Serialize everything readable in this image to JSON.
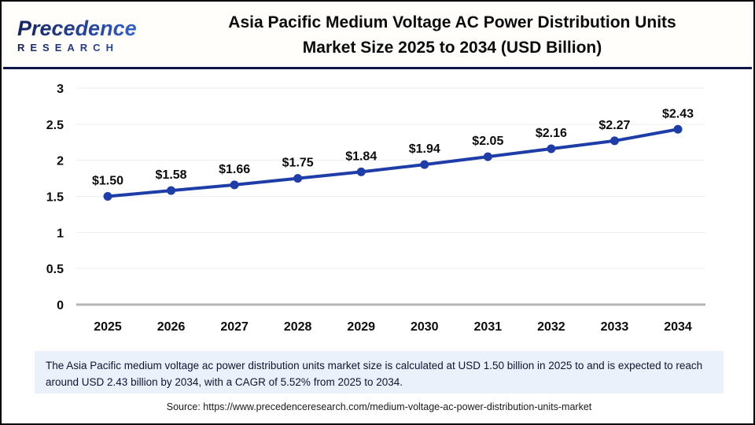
{
  "header": {
    "logo": {
      "brand": "Precedence",
      "sub": "RESEARCH"
    },
    "title_line1": "Asia Pacific Medium Voltage AC Power Distribution Units",
    "title_line2": "Market Size 2025 to 2034 (USD Billion)"
  },
  "chart_data": {
    "type": "line",
    "title": "Asia Pacific Medium Voltage AC Power Distribution Units Market Size 2025 to 2034 (USD Billion)",
    "categories": [
      "2025",
      "2026",
      "2027",
      "2028",
      "2029",
      "2030",
      "2031",
      "2032",
      "2033",
      "2034"
    ],
    "values": [
      1.5,
      1.58,
      1.66,
      1.75,
      1.84,
      1.94,
      2.05,
      2.16,
      2.27,
      2.43
    ],
    "point_labels": [
      "$1.50",
      "$1.58",
      "$1.66",
      "$1.75",
      "$1.84",
      "$1.94",
      "$2.05",
      "$2.16",
      "$2.27",
      "$2.43"
    ],
    "xlabel": "",
    "ylabel": "",
    "ylim": [
      0,
      3
    ],
    "yticks": [
      0,
      0.5,
      1,
      1.5,
      2,
      2.5,
      3
    ],
    "grid": true,
    "legend": "none",
    "line_color": "#1e3da8",
    "marker": "circle"
  },
  "summary": {
    "text": "The Asia Pacific medium voltage ac power distribution units market size is calculated at USD 1.50 billion in 2025 to and is expected to reach around USD 2.43 billion by 2034, with a CAGR of 5.52% from 2025 to 2034."
  },
  "source": {
    "text": "Source: https://www.precedenceresearch.com/medium-voltage-ac-power-distribution-units-market"
  },
  "colors": {
    "line": "#1e3da8",
    "grid": "#ededed",
    "axis": "#b5b5b5",
    "header_rule": "#0e1647",
    "summary_bg": "#e9f1fb",
    "summary_text": "#0f1430",
    "logo_navy": "#16245e",
    "logo_blue": "#3f7bdc"
  }
}
